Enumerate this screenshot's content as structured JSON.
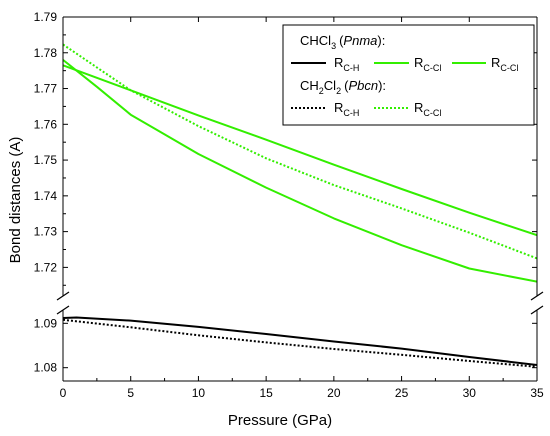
{
  "chart_data": {
    "type": "line",
    "xlabel": "Pressure (GPa)",
    "ylabel": "Bond distances (A)",
    "xlim": [
      0,
      35
    ],
    "xticks": [
      "0",
      "5",
      "10",
      "15",
      "20",
      "25",
      "30",
      "35"
    ],
    "ylim_upper": [
      1.712,
      1.79
    ],
    "ylim_lower": [
      1.077,
      1.093
    ],
    "yticks_upper": [
      "1.72",
      "1.73",
      "1.74",
      "1.75",
      "1.76",
      "1.77",
      "1.78",
      "1.79"
    ],
    "yticks_lower": [
      "1.08",
      "1.09"
    ],
    "axis_break": true,
    "legend": {
      "group1_main": "CHCl",
      "group1_sub": "3",
      "group1_space": "(",
      "group1_phase": "Pnma",
      "group1_end": "):",
      "group2_main1": "CH",
      "group2_sub1": "2",
      "group2_main2": "Cl",
      "group2_sub2": "2",
      "group2_space": "(",
      "group2_phase": "Pbcn",
      "group2_end": "):",
      "label_main": "R",
      "sub_ch": "C-H",
      "sub_ccl": "C-Cl"
    },
    "colors": {
      "black": "#000000",
      "green": "#33ee00"
    },
    "series": [
      {
        "compound": "CHCl3",
        "label": "R C-H",
        "color": "#000000",
        "style": "solid",
        "panel": "lower",
        "x": [
          0,
          1,
          5,
          10,
          15,
          20,
          25,
          30,
          35
        ],
        "y": [
          1.0912,
          1.0913,
          1.0906,
          1.0892,
          1.0876,
          1.0859,
          1.0843,
          1.0824,
          1.0806
        ]
      },
      {
        "compound": "CHCl3",
        "label": "R C-Cl",
        "color": "#33ee00",
        "style": "solid",
        "panel": "upper",
        "x": [
          0,
          5,
          10,
          15,
          20,
          25,
          30,
          35
        ],
        "y": [
          1.7765,
          1.7695,
          1.7625,
          1.7557,
          1.7487,
          1.7419,
          1.7353,
          1.729
        ]
      },
      {
        "compound": "CHCl3",
        "label": "R C-Cl",
        "color": "#33ee00",
        "style": "solid",
        "panel": "upper",
        "x": [
          0,
          2.5,
          5,
          10,
          15,
          20,
          25,
          30,
          35
        ],
        "y": [
          1.778,
          1.7705,
          1.7627,
          1.7517,
          1.7423,
          1.7337,
          1.7262,
          1.7197,
          1.716
        ]
      },
      {
        "compound": "CH2Cl2",
        "label": "R C-H",
        "color": "#000000",
        "style": "dotted",
        "panel": "lower",
        "x": [
          0,
          5,
          10,
          15,
          20,
          25,
          30,
          35
        ],
        "y": [
          1.0908,
          1.0891,
          1.0873,
          1.0857,
          1.0842,
          1.0829,
          1.0815,
          1.0802
        ]
      },
      {
        "compound": "CH2Cl2",
        "label": "R C-Cl",
        "color": "#33ee00",
        "style": "dotted",
        "panel": "upper",
        "x": [
          0,
          5,
          10,
          15,
          20,
          25,
          30,
          35
        ],
        "y": [
          1.7823,
          1.7695,
          1.7595,
          1.7505,
          1.743,
          1.7365,
          1.7297,
          1.7225
        ]
      }
    ]
  }
}
